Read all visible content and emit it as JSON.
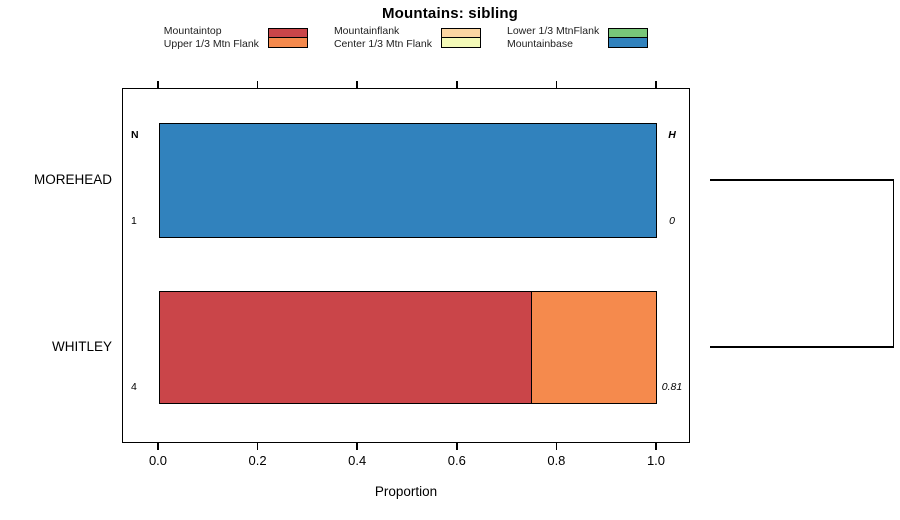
{
  "legend": {
    "groups": [
      {
        "labels": [
          "Mountaintop",
          "Upper 1/3 Mtn Flank"
        ],
        "colors": [
          "#CA4549",
          "#F58A4D"
        ]
      },
      {
        "labels": [
          "Mountainflank",
          "Center 1/3 Mtn Flank"
        ],
        "colors": [
          "#FBD5A2",
          "#F4FAB8"
        ]
      },
      {
        "labels": [
          "Lower 1/3 MtnFlank",
          "Mountainbase"
        ],
        "colors": [
          "#78C679",
          "#3182BD"
        ]
      }
    ]
  },
  "chart_data": {
    "type": "bar",
    "orientation": "horizontal",
    "stacked": true,
    "title": "Mountains: sibling",
    "xlabel": "Proportion",
    "xlim": [
      0,
      1
    ],
    "xticks": [
      0.0,
      0.2,
      0.4,
      0.6,
      0.8,
      1.0
    ],
    "xtick_labels": [
      "0.0",
      "0.2",
      "0.4",
      "0.6",
      "0.8",
      "1.0"
    ],
    "grid": false,
    "categories": [
      "MOREHEAD",
      "WHITLEY"
    ],
    "series": [
      {
        "name": "Mountaintop",
        "color": "#CA4549",
        "values": [
          0,
          0.75
        ]
      },
      {
        "name": "Upper 1/3 Mtn Flank",
        "color": "#F58A4D",
        "values": [
          0,
          0.25
        ]
      },
      {
        "name": "Mountainflank",
        "color": "#FBD5A2",
        "values": [
          0,
          0
        ]
      },
      {
        "name": "Center 1/3 Mtn Flank",
        "color": "#F4FAB8",
        "values": [
          0,
          0
        ]
      },
      {
        "name": "Lower 1/3 MtnFlank",
        "color": "#78C679",
        "values": [
          0,
          0
        ]
      },
      {
        "name": "Mountainbase",
        "color": "#3182BD",
        "values": [
          1,
          0
        ]
      }
    ],
    "annotations": {
      "n_header": "N",
      "h_header": "H",
      "rows": [
        {
          "category": "MOREHEAD",
          "n": "1",
          "h": "0"
        },
        {
          "category": "WHITLEY",
          "n": "4",
          "h": "0.81"
        }
      ]
    },
    "dendrogram": {
      "type": "bracket",
      "side": "right",
      "joins": [
        "MOREHEAD",
        "WHITLEY"
      ]
    }
  }
}
